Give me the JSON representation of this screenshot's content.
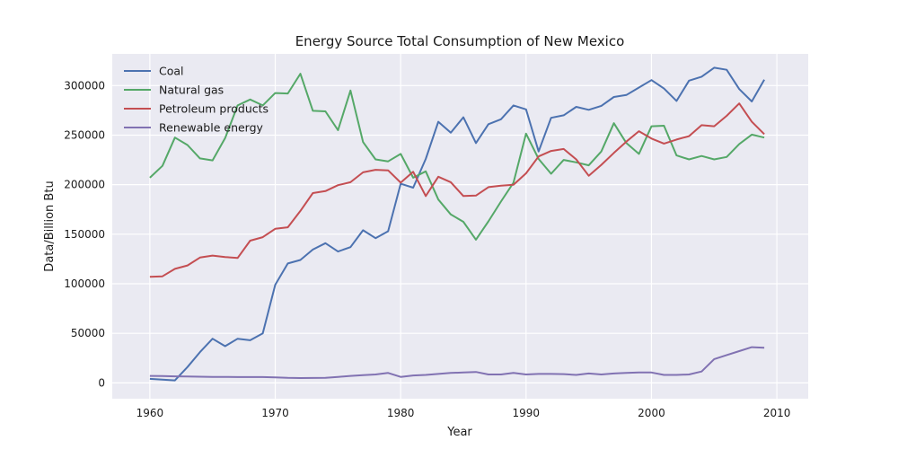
{
  "chart_data": {
    "type": "line",
    "title": "Energy Source Total Consumption of New Mexico",
    "xlabel": "Year",
    "ylabel": "Data/Billion Btu",
    "xlim": [
      1957,
      2012.5
    ],
    "ylim": [
      -16000,
      332000
    ],
    "x_ticks": [
      1960,
      1970,
      1980,
      1990,
      2000,
      2010
    ],
    "y_ticks": [
      0,
      50000,
      100000,
      150000,
      200000,
      250000,
      300000
    ],
    "grid": true,
    "legend_position": "top-left",
    "x": [
      1960,
      1961,
      1962,
      1963,
      1964,
      1965,
      1966,
      1967,
      1968,
      1969,
      1970,
      1971,
      1972,
      1973,
      1974,
      1975,
      1976,
      1977,
      1978,
      1979,
      1980,
      1981,
      1982,
      1983,
      1984,
      1985,
      1986,
      1987,
      1988,
      1989,
      1990,
      1991,
      1992,
      1993,
      1994,
      1995,
      1996,
      1997,
      1998,
      1999,
      2000,
      2001,
      2002,
      2003,
      2004,
      2005,
      2006,
      2007,
      2008,
      2009
    ],
    "series": [
      {
        "name": "Coal",
        "color": "#4c72b0",
        "values": [
          4000,
          3200,
          2500,
          16000,
          31000,
          44500,
          37000,
          44500,
          43000,
          50000,
          99000,
          120500,
          124000,
          134500,
          141000,
          132500,
          137000,
          154000,
          146000,
          153000,
          201000,
          197000,
          226000,
          263500,
          252500,
          268000,
          242000,
          261000,
          266000,
          280000,
          276000,
          233500,
          267500,
          270000,
          278500,
          275500,
          279500,
          288500,
          290500,
          298000,
          305500,
          297000,
          284500,
          305000,
          309000,
          318000,
          316000,
          296500,
          284000,
          306000
        ]
      },
      {
        "name": "Natural gas",
        "color": "#55a868",
        "values": [
          207000,
          219000,
          247500,
          240000,
          226500,
          224500,
          247000,
          280000,
          286000,
          280000,
          292500,
          292000,
          312000,
          274500,
          274000,
          255000,
          295000,
          243000,
          225500,
          223500,
          231000,
          207000,
          213500,
          185000,
          170000,
          162500,
          144500,
          163000,
          183000,
          202000,
          251500,
          226000,
          211000,
          225000,
          222500,
          219500,
          233500,
          262000,
          242000,
          231000,
          259000,
          259500,
          229500,
          225500,
          229000,
          225500,
          228000,
          241000,
          250500,
          247500
        ]
      },
      {
        "name": "Petroleum products",
        "color": "#c44e52",
        "values": [
          107000,
          107500,
          115000,
          118500,
          126500,
          128500,
          127000,
          126000,
          143500,
          147000,
          155500,
          157000,
          173500,
          191500,
          193500,
          199500,
          202500,
          212500,
          215000,
          214500,
          202000,
          213000,
          188500,
          208000,
          202500,
          188500,
          189000,
          197500,
          199000,
          200000,
          211500,
          228500,
          234000,
          236000,
          225500,
          209000,
          220000,
          232000,
          243500,
          254000,
          246500,
          241500,
          245500,
          249000,
          260000,
          259000,
          269500,
          282000,
          263500,
          251000
        ]
      },
      {
        "name": "Renewable energy",
        "color": "#8172b2",
        "values": [
          7000,
          6800,
          6600,
          6400,
          6200,
          6000,
          6000,
          5800,
          5800,
          5800,
          5600,
          5000,
          4800,
          4900,
          5000,
          6000,
          7000,
          7800,
          8500,
          10000,
          6000,
          7500,
          8000,
          9000,
          10000,
          10500,
          11000,
          8500,
          8500,
          10000,
          8500,
          9000,
          9000,
          8800,
          8000,
          9500,
          8500,
          9500,
          10000,
          10500,
          10500,
          8000,
          8000,
          8500,
          11500,
          24000,
          28000,
          32000,
          36000,
          35500
        ]
      }
    ]
  }
}
